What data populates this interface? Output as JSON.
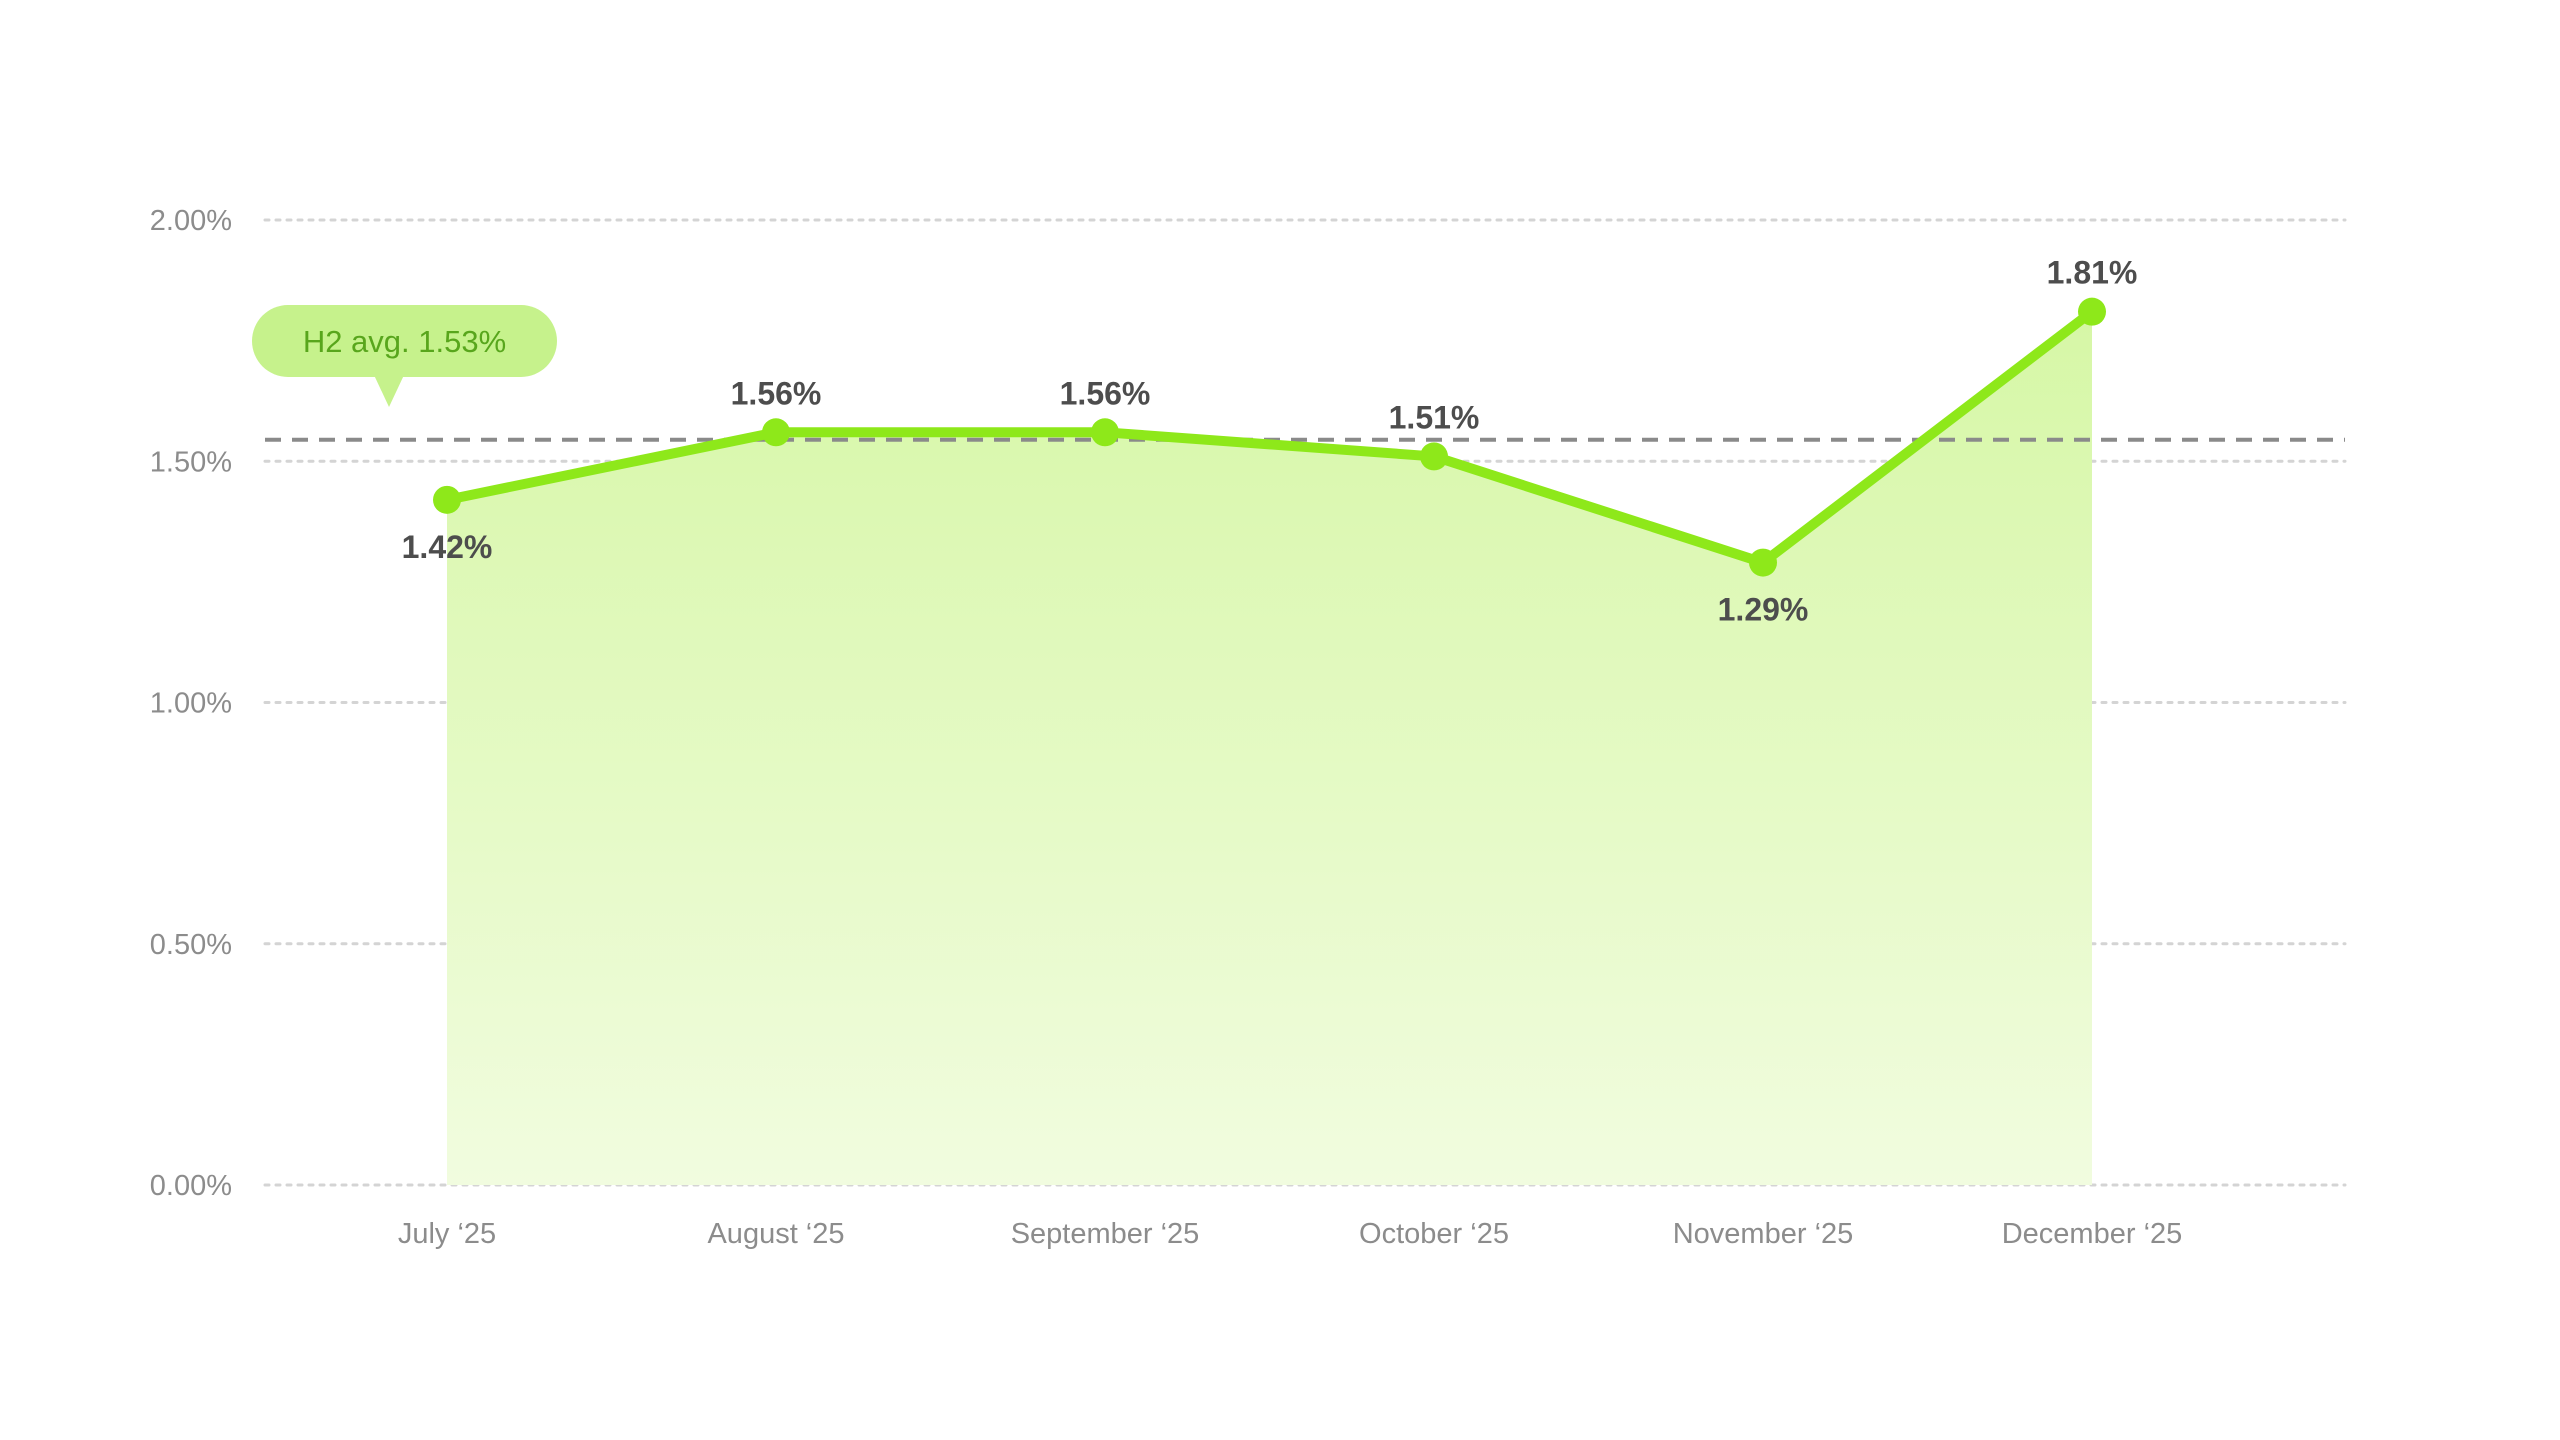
{
  "chart_data": {
    "type": "area",
    "categories": [
      "July ‘25",
      "August ‘25",
      "September ‘25",
      "October ‘25",
      "November ‘25",
      "December ‘25"
    ],
    "values": [
      1.42,
      1.56,
      1.56,
      1.51,
      1.29,
      1.81
    ],
    "value_labels": [
      "1.42%",
      "1.56%",
      "1.56%",
      "1.51%",
      "1.29%",
      "1.81%"
    ],
    "label_placement": [
      "below",
      "above",
      "above",
      "above",
      "below",
      "above"
    ],
    "ylim": [
      0,
      2
    ],
    "y_ticks": [
      0,
      0.5,
      1,
      1.5,
      2
    ],
    "y_tick_labels": [
      "0.00%",
      "0.50%",
      "1.00%",
      "1.50%",
      "2.00%"
    ],
    "average": {
      "value": 1.53,
      "label": "H2 avg. 1.53%"
    },
    "title": "",
    "xlabel": "",
    "ylabel": "",
    "grid": true,
    "legend": "none",
    "colors": {
      "line": "#8ee81a",
      "point": "#8ee81a",
      "fill_top": "#d6f7a6",
      "fill_bottom": "#f1fcdf",
      "grid": "#d4d4d4",
      "average_line": "#8a8a8a",
      "badge_bg": "#c6f28c",
      "badge_text": "#58a61c",
      "label_text": "#4d4d4d",
      "tick_text": "#8c8c8c"
    }
  }
}
